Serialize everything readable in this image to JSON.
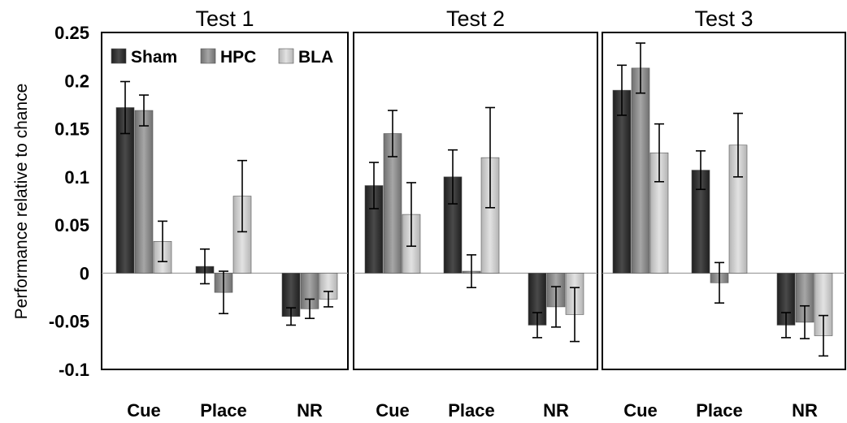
{
  "chart_data": {
    "type": "bar",
    "ylabel": "Performance relative to chance",
    "ylim": [
      -0.1,
      0.25
    ],
    "yticks": [
      "0.25",
      "0.2",
      "0.15",
      "0.1",
      "0.05",
      "0",
      "-0.05",
      "-0.1"
    ],
    "ytick_values": [
      0.25,
      0.2,
      0.15,
      0.1,
      0.05,
      0,
      -0.05,
      -0.1
    ],
    "categories": [
      "Cue",
      "Place",
      "NR"
    ],
    "series_names": [
      "Sham",
      "HPC",
      "BLA"
    ],
    "colors": {
      "Sham": "#333333",
      "HPC": "#8c8c8c",
      "BLA": "#cfcfcf"
    },
    "legend_position": "top-left of first panel",
    "grid": false,
    "panels": [
      {
        "title": "Test 1",
        "series": [
          {
            "name": "Sham",
            "values": [
              0.172,
              0.007,
              -0.045
            ],
            "errors": [
              0.027,
              0.018,
              0.009
            ]
          },
          {
            "name": "HPC",
            "values": [
              0.169,
              -0.02,
              -0.037
            ],
            "errors": [
              0.016,
              0.022,
              0.01
            ]
          },
          {
            "name": "BLA",
            "values": [
              0.033,
              0.08,
              -0.027
            ],
            "errors": [
              0.021,
              0.037,
              0.008
            ]
          }
        ]
      },
      {
        "title": "Test 2",
        "series": [
          {
            "name": "Sham",
            "values": [
              0.091,
              0.1,
              -0.054
            ],
            "errors": [
              0.024,
              0.028,
              0.013
            ]
          },
          {
            "name": "HPC",
            "values": [
              0.145,
              0.002,
              -0.035
            ],
            "errors": [
              0.024,
              0.017,
              0.021
            ]
          },
          {
            "name": "BLA",
            "values": [
              0.061,
              0.12,
              -0.043
            ],
            "errors": [
              0.033,
              0.052,
              0.028
            ]
          }
        ]
      },
      {
        "title": "Test 3",
        "series": [
          {
            "name": "Sham",
            "values": [
              0.19,
              0.107,
              -0.054
            ],
            "errors": [
              0.026,
              0.02,
              0.013
            ]
          },
          {
            "name": "HPC",
            "values": [
              0.213,
              -0.01,
              -0.051
            ],
            "errors": [
              0.026,
              0.021,
              0.017
            ]
          },
          {
            "name": "BLA",
            "values": [
              0.125,
              0.133,
              -0.065
            ],
            "errors": [
              0.03,
              0.033,
              0.021
            ]
          }
        ]
      }
    ]
  }
}
